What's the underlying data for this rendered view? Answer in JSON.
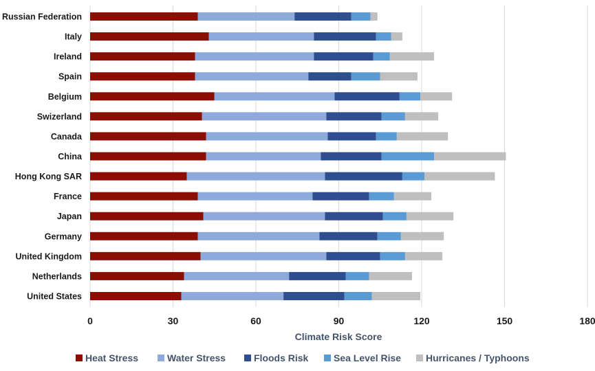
{
  "chart_data": {
    "type": "bar",
    "orientation": "horizontal",
    "stacked": true,
    "categories": [
      "Russian Federation",
      "Italy",
      "Ireland",
      "Spain",
      "Belgium",
      "Swizerland",
      "Canada",
      "China",
      "Hong Kong SAR",
      "France",
      "Japan",
      "Germany",
      "United Kingdom",
      "Netherlands",
      "United States"
    ],
    "series": [
      {
        "name": "Heat Stress",
        "color": "#8b0e04",
        "values": [
          39,
          43,
          38,
          38,
          45,
          40.5,
          42,
          42,
          35,
          39,
          41,
          39,
          40,
          34,
          33
        ]
      },
      {
        "name": "Water Stress",
        "color": "#8eaadb",
        "values": [
          35,
          38,
          43,
          41,
          43.5,
          45,
          44,
          41.5,
          50,
          41.5,
          44,
          44,
          45.5,
          38,
          37
        ]
      },
      {
        "name": "Floods Risk",
        "color": "#2e4e8f",
        "values": [
          20.5,
          22.5,
          21.5,
          15.5,
          23.5,
          20,
          17.5,
          22,
          28,
          20.5,
          21,
          21,
          19.5,
          20.5,
          22
        ]
      },
      {
        "name": "Sea Level Rise",
        "color": "#5b9bd5",
        "values": [
          7,
          5.5,
          6,
          10.5,
          7.5,
          8.5,
          7.5,
          19,
          8,
          9,
          8.5,
          8.5,
          9,
          8.5,
          10
        ]
      },
      {
        "name": "Hurricanes / Typhoons",
        "color": "#bfbfbf",
        "values": [
          2.5,
          4,
          16,
          13.5,
          11.5,
          12,
          18.5,
          26,
          25.5,
          13.5,
          17,
          15.5,
          13.5,
          15.5,
          17.5
        ]
      }
    ],
    "xlabel": "Climate Risk Score",
    "xlim": [
      0,
      180
    ],
    "xticks": [
      "0",
      "30",
      "60",
      "90",
      "120",
      "150",
      "180"
    ],
    "grid": true,
    "legend_position": "bottom"
  }
}
